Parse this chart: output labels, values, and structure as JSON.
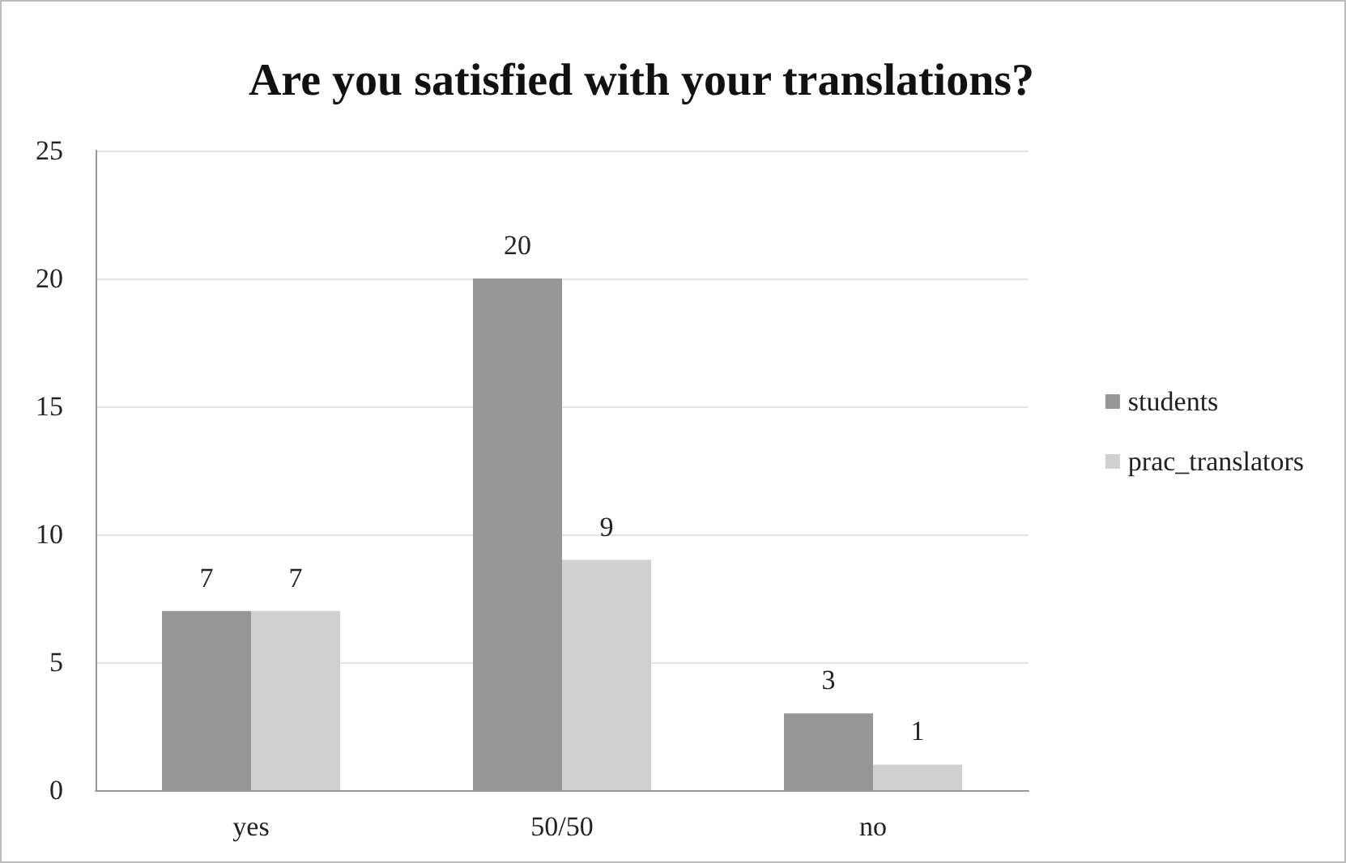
{
  "chart_data": {
    "type": "bar",
    "title": "Are you satisfied with your translations?",
    "categories": [
      "yes",
      "50/50",
      "no"
    ],
    "series": [
      {
        "name": "students",
        "color": "#969696",
        "values": [
          7,
          20,
          3
        ]
      },
      {
        "name": "prac_translators",
        "color": "#d0d0d0",
        "values": [
          7,
          9,
          1
        ]
      }
    ],
    "ylim": [
      0,
      25
    ],
    "yticks": [
      0,
      5,
      10,
      15,
      20,
      25
    ],
    "grid": "y",
    "legend": "right",
    "data_labels": true
  }
}
